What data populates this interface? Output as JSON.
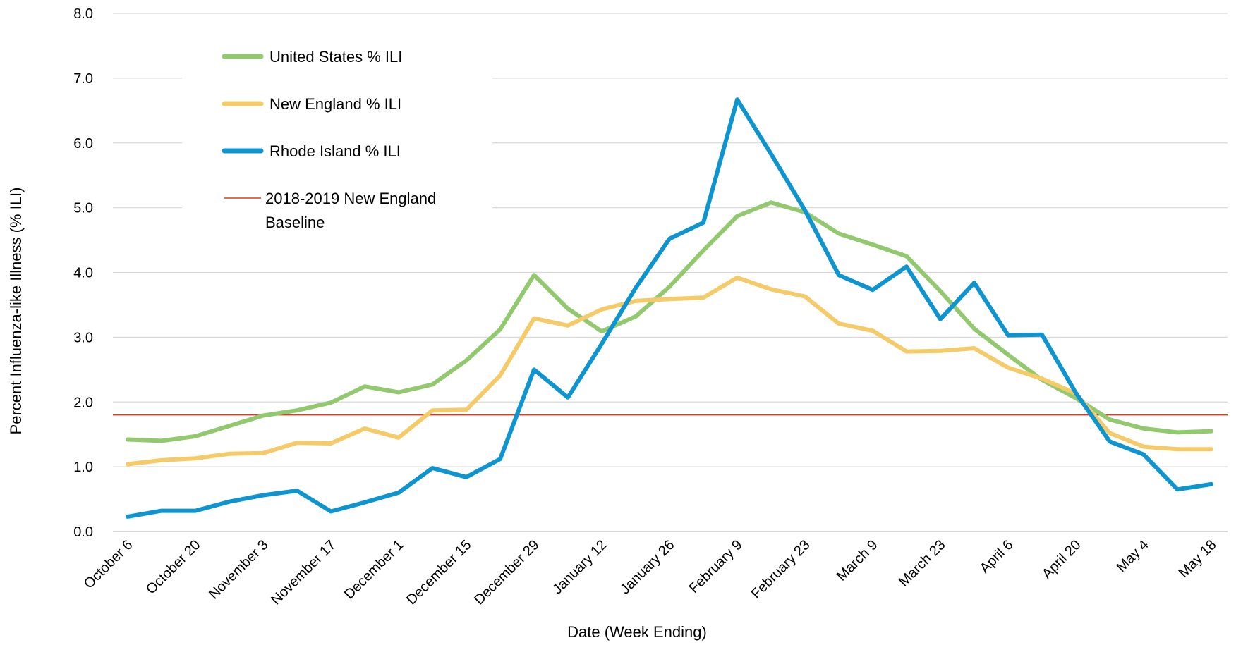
{
  "chart_data": {
    "type": "line",
    "xlabel": "Date (Week Ending)",
    "ylabel": "Percent Influenza-like Illness (% ILI)",
    "ylim": [
      0,
      8
    ],
    "yticks": [
      "0.0",
      "1.0",
      "2.0",
      "3.0",
      "4.0",
      "5.0",
      "6.0",
      "7.0",
      "8.0"
    ],
    "grid": "horizontal",
    "legend_position": "top-left",
    "x_tick_labels": [
      "October 6",
      "October 20",
      "November 3",
      "November 17",
      "December 1",
      "December 15",
      "December 29",
      "January 12",
      "January 26",
      "February 9",
      "February 23",
      "March 9",
      "March 23",
      "April 6",
      "April 20",
      "May 4",
      "May 18"
    ],
    "x_tick_every": 2,
    "series": [
      {
        "name": "United States % ILI",
        "color": "#92C96F",
        "values": [
          1.42,
          1.4,
          1.47,
          1.63,
          1.79,
          1.87,
          1.99,
          2.24,
          2.15,
          2.27,
          2.64,
          3.12,
          3.96,
          3.44,
          3.09,
          3.32,
          3.78,
          4.34,
          4.87,
          5.08,
          4.93,
          4.6,
          4.43,
          4.25,
          3.71,
          3.13,
          2.73,
          2.34,
          2.06,
          1.73,
          1.59,
          1.53,
          1.55
        ]
      },
      {
        "name": "New England % ILI",
        "color": "#F4CB68",
        "values": [
          1.04,
          1.1,
          1.13,
          1.2,
          1.21,
          1.37,
          1.36,
          1.59,
          1.45,
          1.87,
          1.88,
          2.41,
          3.29,
          3.18,
          3.43,
          3.56,
          3.59,
          3.61,
          3.92,
          3.74,
          3.63,
          3.21,
          3.1,
          2.78,
          2.79,
          2.83,
          2.53,
          2.36,
          2.13,
          1.52,
          1.31,
          1.27,
          1.27
        ]
      },
      {
        "name": "Rhode Island % ILI",
        "color": "#0E95CF",
        "values": [
          0.23,
          0.32,
          0.32,
          0.46,
          0.56,
          0.63,
          0.31,
          0.45,
          0.6,
          0.98,
          0.84,
          1.12,
          2.5,
          2.07,
          2.9,
          3.76,
          4.52,
          4.77,
          6.67,
          5.83,
          4.96,
          3.96,
          3.73,
          4.09,
          3.28,
          3.84,
          3.03,
          3.04,
          2.14,
          1.39,
          1.19,
          0.65,
          0.73
        ]
      }
    ],
    "reference_lines": [
      {
        "name": "2018-2019 New England Baseline",
        "name_lines": [
          "2018-2019 New England",
          "Baseline"
        ],
        "color": "#E8331B",
        "value": 1.8
      }
    ]
  }
}
